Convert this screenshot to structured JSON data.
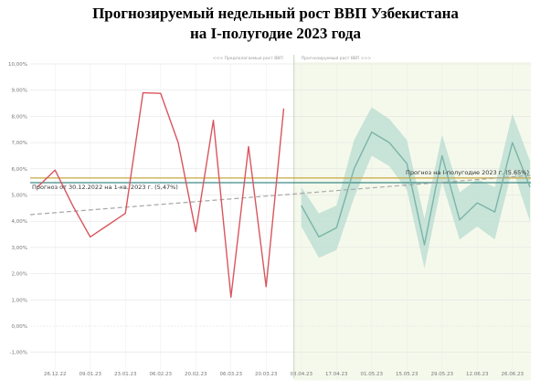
{
  "chart_data": {
    "type": "line",
    "title_line1": "Прогнозируемый недельный рост ВВП Узбекистана",
    "title_line2": "на I-полугодие 2023 года",
    "header_left": "<<< Предполагаемые рост ВВП",
    "header_right": "Прогнозируемый рост ВВП >>>",
    "ylim": [
      -2,
      10
    ],
    "y_ticks": [
      -1,
      0,
      1,
      2,
      3,
      4,
      5,
      6,
      7,
      8,
      9,
      10
    ],
    "y_tick_labels": [
      "-1,00%",
      "0,00%",
      "1,00%",
      "2,00%",
      "3,00%",
      "4,00%",
      "5,00%",
      "6,00%",
      "7,00%",
      "8,00%",
      "9,00%",
      "10,00%"
    ],
    "x_tick_labels": [
      "26.12.22",
      "09.01.23",
      "23.01.23",
      "06.02.23",
      "20.02.23",
      "06.03.23",
      "20.03.23",
      "03.04.23",
      "17.04.23",
      "01.05.23",
      "15.05.23",
      "29.05.23",
      "12.06.23",
      "26.06.23"
    ],
    "grid": true,
    "legend": "none",
    "colors": {
      "actual": "#d9555f",
      "forecast": "#7ab5a8",
      "band": "#bfdfd5",
      "forecast_bg": "#f5f9ec",
      "line_q1": "#3d8a87",
      "line_h1": "#c9a840",
      "trend": "#a8a8a8",
      "divider": "#c6d3ba"
    },
    "series": [
      {
        "x": [
          "19.12.22",
          "26.12.22",
          "02.01.23",
          "09.01.23",
          "16.01.23",
          "23.01.23",
          "30.01.23",
          "06.02.23",
          "13.02.23",
          "20.02.23",
          "27.02.23",
          "06.03.23",
          "13.03.23",
          "20.03.23",
          "27.03.23"
        ],
        "values": [
          5.3,
          5.95,
          4.6,
          3.4,
          3.85,
          4.3,
          8.9,
          8.88,
          7.0,
          3.6,
          7.85,
          1.1,
          6.85,
          1.5,
          8.3
        ]
      },
      {
        "x": [
          "03.04.23",
          "10.04.23",
          "17.04.23",
          "24.04.23",
          "01.05.23",
          "08.05.23",
          "15.05.23",
          "22.05.23",
          "29.05.23",
          "05.06.23",
          "12.06.23",
          "19.06.23",
          "26.06.23",
          "03.07.23"
        ],
        "values": [
          4.6,
          3.4,
          3.75,
          6.0,
          7.4,
          7.0,
          6.2,
          3.1,
          6.5,
          4.05,
          4.7,
          4.35,
          7.0,
          5.3
        ],
        "lower": [
          3.8,
          2.6,
          2.9,
          4.9,
          6.5,
          6.1,
          5.2,
          2.2,
          5.5,
          3.3,
          3.8,
          3.3,
          6.0,
          4.0
        ],
        "upper": [
          5.3,
          4.3,
          4.6,
          7.1,
          8.35,
          7.9,
          7.1,
          4.1,
          7.3,
          5.1,
          5.6,
          5.3,
          8.1,
          6.3
        ]
      }
    ],
    "reference_lines": [
      {
        "value": 5.47,
        "label": "Прогноз от 30.12.2022 на 1-кв. 2023 г. (5,47%)"
      },
      {
        "value": 5.65,
        "label": "Прогноз на I-полугодие 2023 г. (5,65%)"
      }
    ],
    "trend": {
      "start": 4.25,
      "end": 5.75
    }
  }
}
